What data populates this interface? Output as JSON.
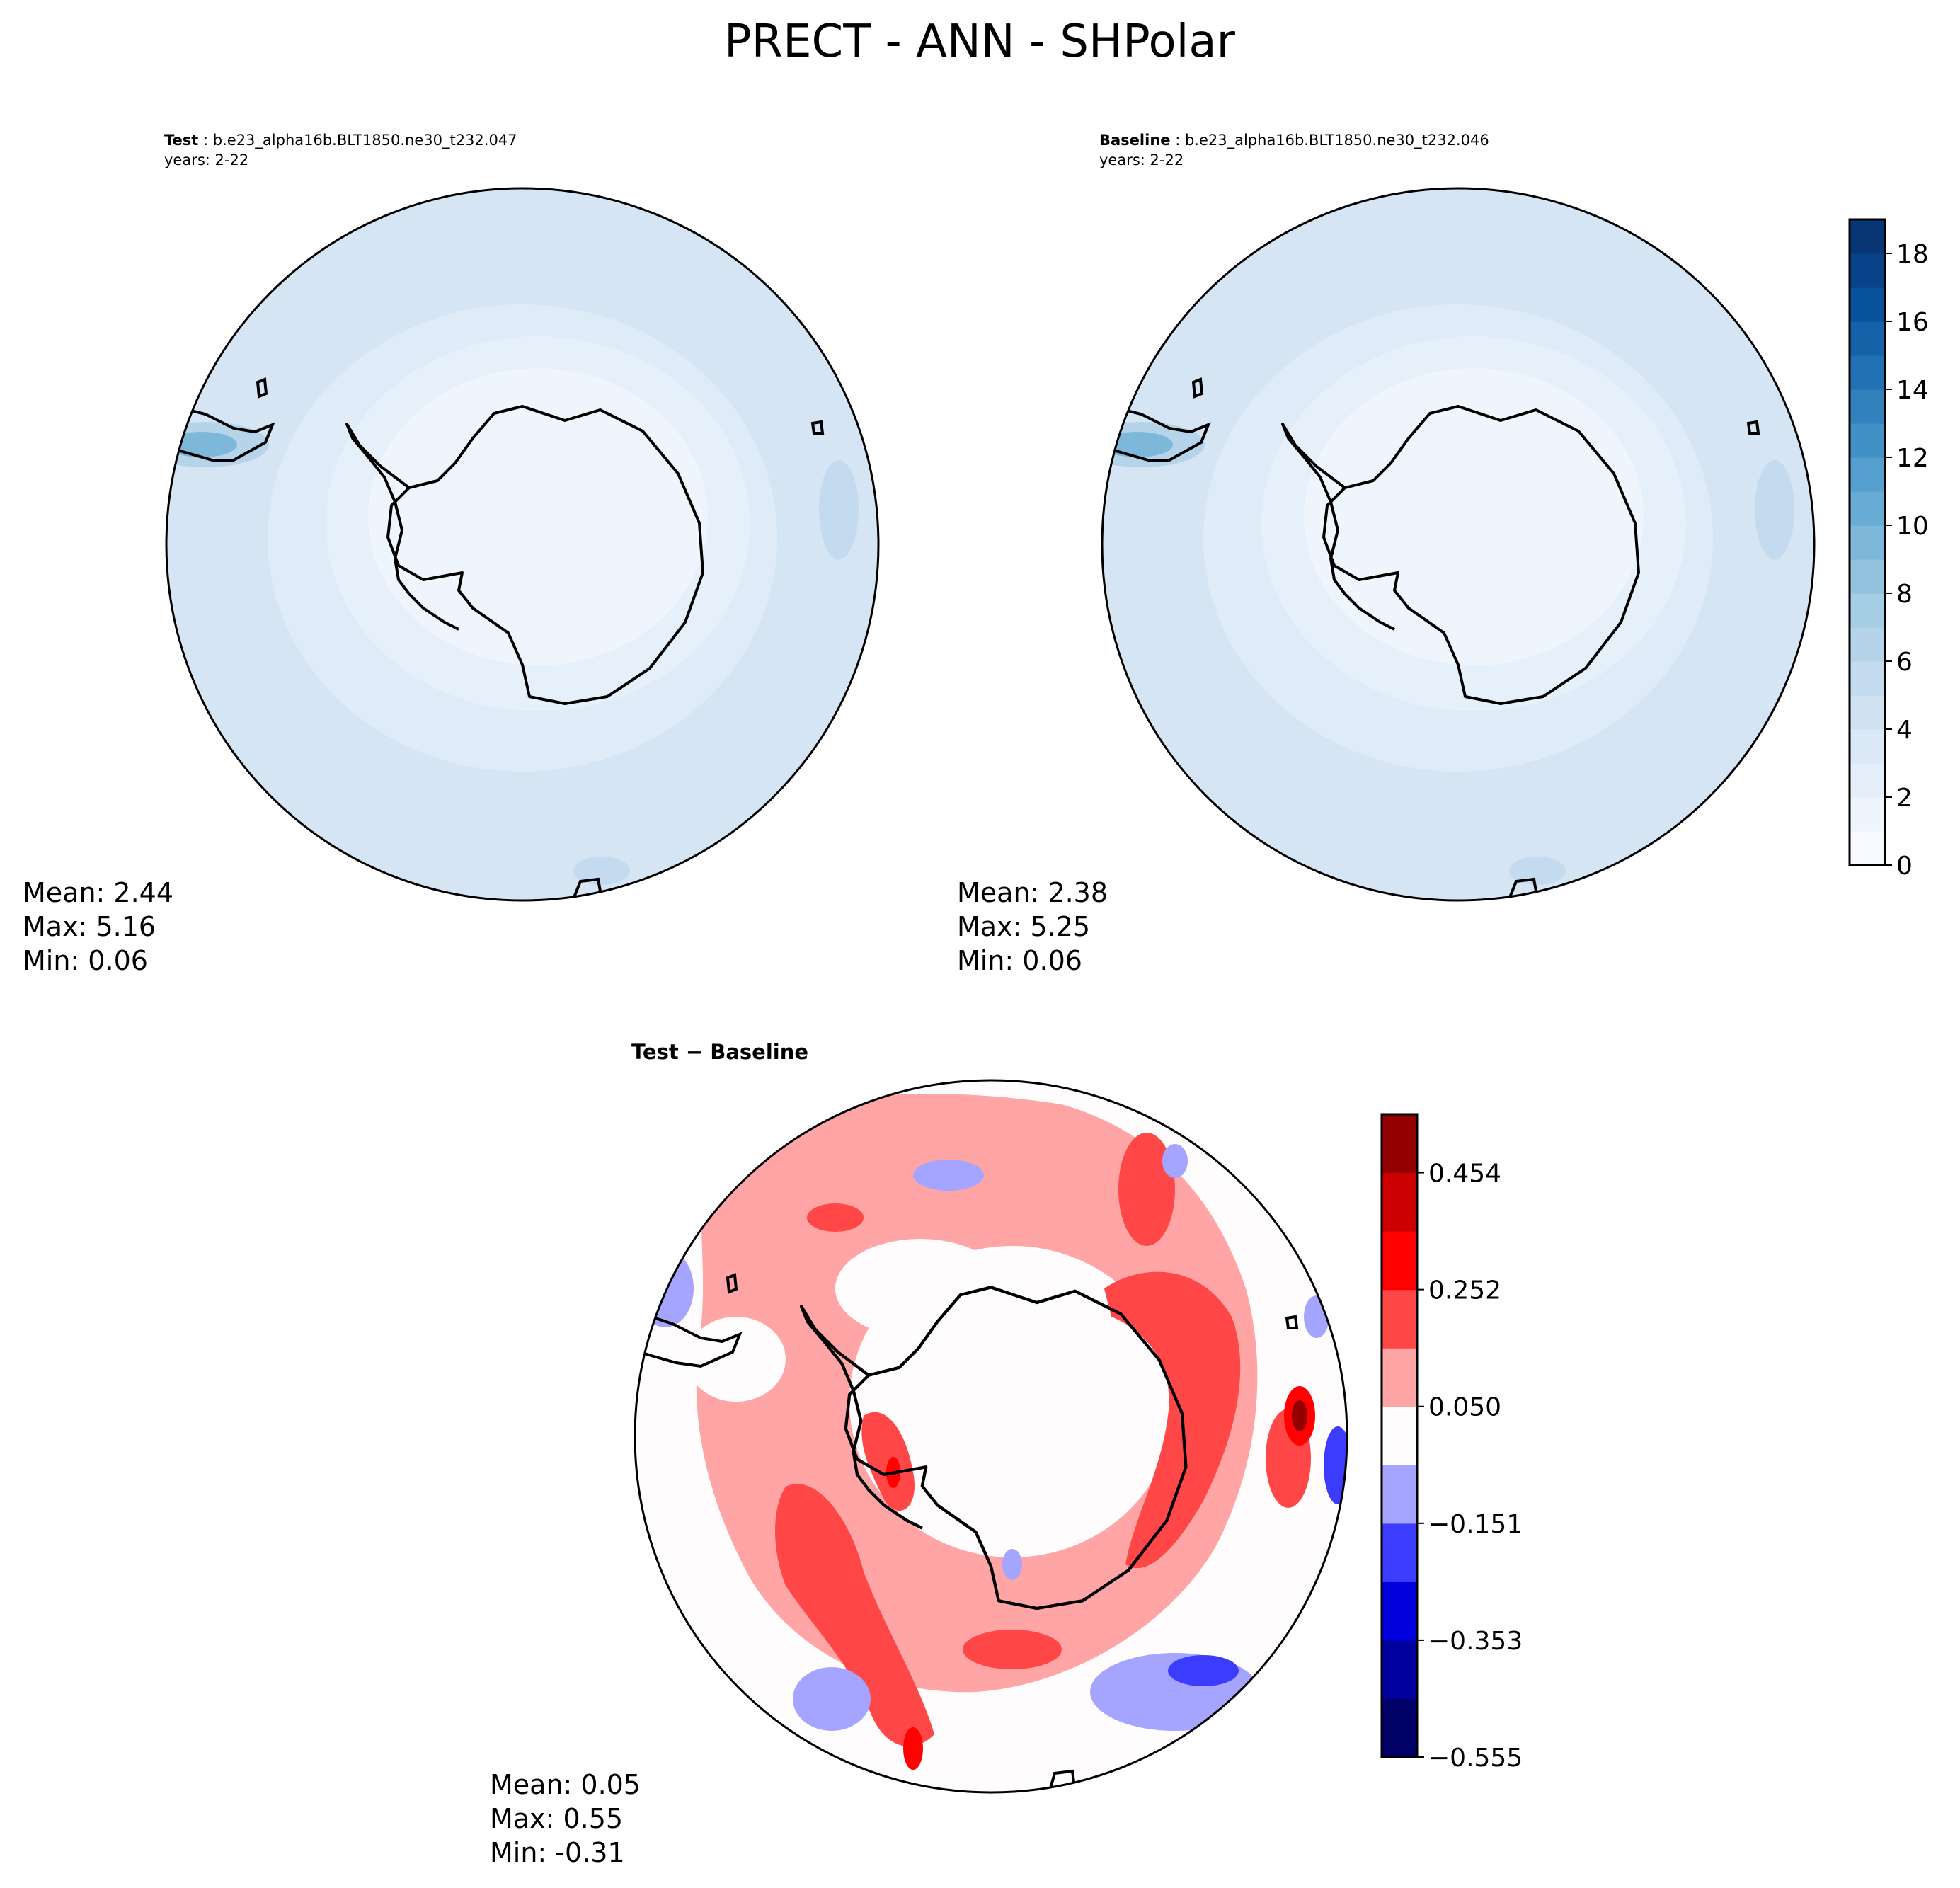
{
  "title": "PRECT - ANN - SHPolar",
  "panels": [
    {
      "label": "Test",
      "case": "b.e23_alpha16b.BLT1850.ne30_t232.047",
      "years": "years: 2-22",
      "stats": {
        "mean": "Mean:  2.44",
        "max": "Max:  5.16",
        "min": "Min:  0.06"
      }
    },
    {
      "label": "Baseline",
      "case": "b.e23_alpha16b.BLT1850.ne30_t232.046",
      "years": "years: 2-22",
      "stats": {
        "mean": "Mean:  2.38",
        "max": "Max:  5.25",
        "min": "Min:  0.06"
      }
    },
    {
      "label": "Test − Baseline",
      "stats": {
        "mean": "Mean:  0.05",
        "max": "Max:  0.55",
        "min": "Min: -0.31"
      }
    }
  ],
  "chart_data": [
    {
      "type": "heatmap",
      "projection": "south-polar-stereographic",
      "variable": "PRECT",
      "season": "ANN",
      "region": "SHPolar",
      "colormap": "Blues",
      "colorbar": {
        "ticks": [
          0,
          2,
          4,
          6,
          8,
          10,
          12,
          14,
          16,
          18
        ],
        "range": [
          0,
          19
        ],
        "colors": [
          "#f7fbff",
          "#eef5fc",
          "#e4eff9",
          "#dbe9f6",
          "#d0e2f2",
          "#c4daee",
          "#b6d4e9",
          "#a5cde3",
          "#92c2de",
          "#7db8da",
          "#68acd5",
          "#549fcd",
          "#4191c6",
          "#3181bd",
          "#2171b5",
          "#1562a9",
          "#08529c",
          "#084389",
          "#083674"
        ]
      },
      "summary": {
        "mean": 2.44,
        "max": 5.16,
        "min": 0.06
      }
    },
    {
      "type": "heatmap",
      "projection": "south-polar-stereographic",
      "variable": "PRECT",
      "season": "ANN",
      "region": "SHPolar",
      "colormap": "Blues",
      "summary": {
        "mean": 2.38,
        "max": 5.25,
        "min": 0.06
      }
    },
    {
      "type": "heatmap",
      "projection": "south-polar-stereographic",
      "colormap": "seismic",
      "colorbar": {
        "ticks": [
          "0.454",
          "0.252",
          "0.050",
          "−0.151",
          "−0.353",
          "−0.555"
        ],
        "range": [
          -0.555,
          0.555
        ],
        "colors": [
          "#000066",
          "#00009e",
          "#0000dd",
          "#3c3cff",
          "#a5a5ff",
          "#fefcfc",
          "#ffa5a5",
          "#ff4747",
          "#ff0101",
          "#cc0000",
          "#930000"
        ]
      },
      "summary": {
        "mean": 0.05,
        "max": 0.55,
        "min": -0.31
      }
    }
  ]
}
